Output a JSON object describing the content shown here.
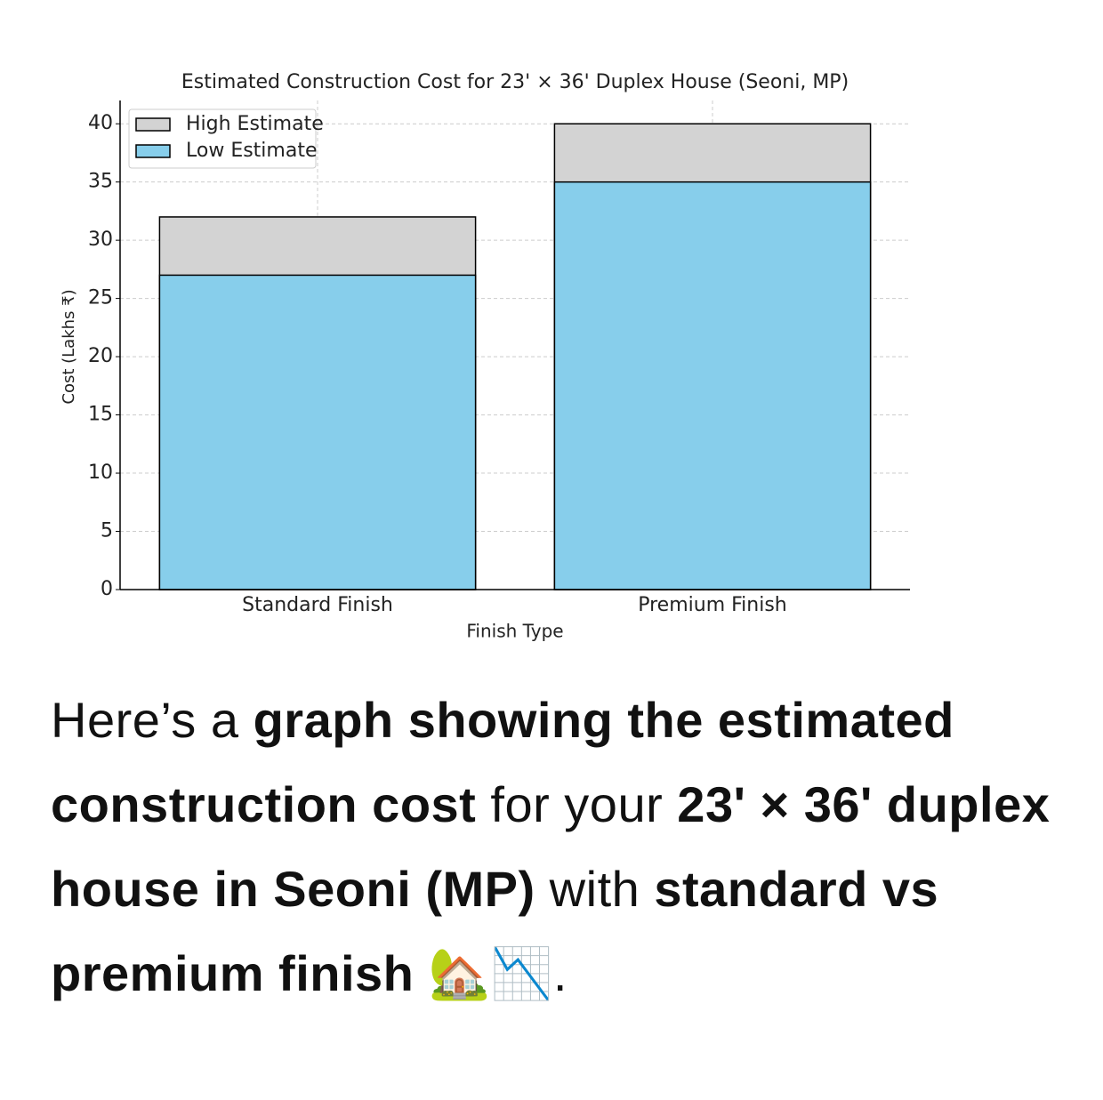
{
  "chart_data": {
    "type": "bar",
    "overlap": true,
    "title": "Estimated Construction Cost for 23' × 36' Duplex House (Seoni, MP)",
    "xlabel": "Finish Type",
    "ylabel": "Cost (Lakhs ₹)",
    "categories": [
      "Standard Finish",
      "Premium Finish"
    ],
    "series": [
      {
        "name": "High Estimate",
        "color": "#d3d3d3",
        "values": [
          32,
          40
        ]
      },
      {
        "name": "Low Estimate",
        "color": "#87ceeb",
        "values": [
          27,
          35
        ]
      }
    ],
    "ylim": [
      0,
      42
    ],
    "yticks": [
      0,
      5,
      10,
      15,
      20,
      25,
      30,
      35,
      40
    ],
    "grid": true,
    "legend": "upper left"
  },
  "message": {
    "segments": [
      {
        "text": "Here’s a ",
        "bold": false
      },
      {
        "text": "graph showing the estimated construction cost",
        "bold": true
      },
      {
        "text": " for your ",
        "bold": false
      },
      {
        "text": "23' × 36' duplex house in Seoni (MP)",
        "bold": true
      },
      {
        "text": " with ",
        "bold": false
      },
      {
        "text": "standard vs premium finish",
        "bold": true
      },
      {
        "text": " 🏡📉.",
        "bold": false
      }
    ]
  }
}
